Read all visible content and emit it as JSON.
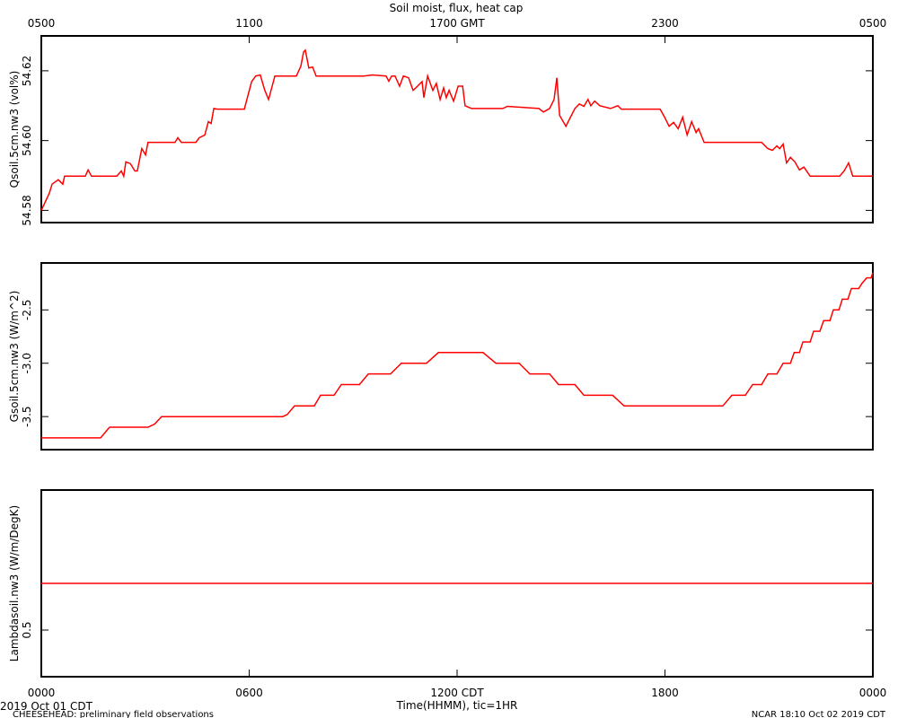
{
  "chart_data": [
    {
      "type": "line",
      "title": "Soil moist, flux, heat cap",
      "ylabel": "Qsoil.5cm.nw3 (vol%)",
      "color": "#ff0000",
      "xlim": [
        0,
        24
      ],
      "ylim": [
        54.5765,
        54.63
      ],
      "x2ticks": [
        {
          "value": 0,
          "label": "0500"
        },
        {
          "value": 6,
          "label": "1100"
        },
        {
          "value": 12,
          "label": "1700 GMT"
        },
        {
          "value": 18,
          "label": "2300"
        },
        {
          "value": 24,
          "label": "0500"
        }
      ],
      "yticks": [
        54.58,
        {
          "value": 54.6,
          "label": "54.60"
        },
        54.62
      ],
      "x": [
        0,
        0.23,
        0.31,
        0.49,
        0.62,
        0.67,
        1.27,
        1.35,
        1.45,
        2.18,
        2.31,
        2.38,
        2.44,
        2.57,
        2.7,
        2.77,
        2.9,
        3.01,
        3.08,
        3.86,
        3.94,
        4.04,
        4.46,
        4.56,
        4.72,
        4.82,
        4.9,
        4.98,
        5.08,
        5.86,
        6.07,
        6.19,
        6.32,
        6.45,
        6.56,
        6.74,
        7.36,
        7.49,
        7.57,
        7.62,
        7.72,
        7.83,
        7.93,
        9.31,
        9.56,
        9.95,
        10.03,
        10.11,
        10.21,
        10.34,
        10.45,
        10.6,
        10.73,
        10.86,
        10.99,
        11.04,
        11.15,
        11.3,
        11.4,
        11.51,
        11.61,
        11.69,
        11.77,
        11.9,
        12.03,
        12.16,
        12.23,
        12.42,
        13.32,
        13.45,
        14.36,
        14.49,
        14.67,
        14.8,
        14.88,
        14.96,
        15.14,
        15.4,
        15.53,
        15.66,
        15.78,
        15.86,
        15.97,
        16.12,
        16.43,
        16.64,
        16.74,
        17.86,
        17.99,
        18.12,
        18.25,
        18.38,
        18.51,
        18.64,
        18.77,
        18.9,
        18.97,
        19.13,
        20.79,
        20.97,
        21.1,
        21.23,
        21.31,
        21.41,
        21.51,
        21.62,
        21.75,
        21.88,
        22.01,
        22.19,
        23.04,
        23.17,
        23.3,
        23.42,
        24
      ],
      "values": [
        54.58,
        54.5849,
        54.5875,
        54.5888,
        54.5875,
        54.5898,
        54.5898,
        54.5916,
        54.5898,
        54.5898,
        54.5913,
        54.5898,
        54.5939,
        54.5934,
        54.5913,
        54.5913,
        54.5977,
        54.5959,
        54.5995,
        54.5995,
        54.6008,
        54.5995,
        54.5995,
        54.6008,
        54.6016,
        54.6054,
        54.6049,
        54.6092,
        54.609,
        54.609,
        54.6169,
        54.6185,
        54.6188,
        54.6144,
        54.6118,
        54.6185,
        54.6185,
        54.6213,
        54.6254,
        54.6259,
        54.6208,
        54.6211,
        54.6185,
        54.6185,
        54.6188,
        54.6185,
        54.617,
        54.6185,
        54.6185,
        54.6156,
        54.6185,
        54.618,
        54.6144,
        54.6156,
        54.6169,
        54.6123,
        54.6185,
        54.6144,
        54.6164,
        54.6118,
        54.6151,
        54.6123,
        54.6144,
        54.6113,
        54.6156,
        54.6156,
        54.61,
        54.6092,
        54.6092,
        54.6098,
        54.6092,
        54.6082,
        54.6092,
        54.6118,
        54.618,
        54.6072,
        54.6041,
        54.6092,
        54.6105,
        54.6098,
        54.6118,
        54.61,
        54.6113,
        54.61,
        54.6092,
        54.61,
        54.609,
        54.609,
        54.6067,
        54.6041,
        54.6052,
        54.6034,
        54.6067,
        54.6016,
        54.6054,
        54.6023,
        54.6034,
        54.5995,
        54.5995,
        54.5977,
        54.5972,
        54.5985,
        54.5977,
        54.599,
        54.5936,
        54.5952,
        54.5939,
        54.5916,
        54.5924,
        54.5898,
        54.5898,
        54.5913,
        54.5936,
        54.5898,
        54.5898
      ]
    },
    {
      "type": "line",
      "ylabel": "Gsoil.5cm.nw3 (W/m^2)",
      "color": "#ff0000",
      "xlim": [
        0,
        24
      ],
      "ylim": [
        -3.81,
        -2.06
      ],
      "yticks": [
        -3.5,
        {
          "value": -3,
          "label": "-3.0"
        },
        -2.5
      ],
      "x": [
        0,
        1.71,
        1.97,
        3.08,
        3.27,
        3.47,
        6.97,
        7.1,
        7.31,
        7.88,
        8.06,
        8.45,
        8.66,
        9.18,
        9.44,
        10.08,
        10.39,
        11.12,
        11.46,
        12.75,
        13.12,
        13.79,
        14.1,
        14.67,
        14.93,
        15.4,
        15.66,
        16.49,
        16.82,
        19.67,
        19.93,
        20.32,
        20.53,
        20.79,
        20.97,
        21.23,
        21.41,
        21.62,
        21.73,
        21.88,
        21.98,
        22.19,
        22.29,
        22.47,
        22.58,
        22.76,
        22.86,
        23.02,
        23.12,
        23.28,
        23.38,
        23.59,
        23.69,
        23.82,
        23.95,
        24
      ],
      "values": [
        -3.7,
        -3.7,
        -3.6,
        -3.6,
        -3.57,
        -3.5,
        -3.5,
        -3.48,
        -3.4,
        -3.4,
        -3.3,
        -3.3,
        -3.2,
        -3.2,
        -3.1,
        -3.1,
        -3.0,
        -3.0,
        -2.9,
        -2.9,
        -3.0,
        -3.0,
        -3.1,
        -3.1,
        -3.2,
        -3.2,
        -3.3,
        -3.3,
        -3.4,
        -3.4,
        -3.3,
        -3.3,
        -3.2,
        -3.2,
        -3.1,
        -3.1,
        -3.0,
        -3.0,
        -2.9,
        -2.9,
        -2.8,
        -2.8,
        -2.7,
        -2.7,
        -2.6,
        -2.6,
        -2.5,
        -2.5,
        -2.4,
        -2.4,
        -2.3,
        -2.3,
        -2.25,
        -2.2,
        -2.2,
        -2.15
      ]
    },
    {
      "type": "line",
      "ylabel": "Lambdasoil.nw3 (W/m/DegK)",
      "xlabel": "Time(HHMM), tic=1HR",
      "color": "#ff0000",
      "xlim": [
        0,
        24
      ],
      "ylim": [
        0.4,
        0.8
      ],
      "xticks": [
        {
          "value": 0,
          "label": "0000"
        },
        {
          "value": 6,
          "label": "0600"
        },
        {
          "value": 12,
          "label": "1200 CDT"
        },
        {
          "value": 18,
          "label": "1800"
        },
        {
          "value": 24,
          "label": "0000"
        }
      ],
      "yticks": [
        0.5
      ],
      "x": [
        0,
        24
      ],
      "values": [
        0.6,
        0.6
      ]
    }
  ],
  "footer": {
    "date": "2019 Oct 01 CDT",
    "project": "CHEESEHEAD: preliminary field observations",
    "stamp": "NCAR 18:10 Oct 02 2019 CDT"
  }
}
